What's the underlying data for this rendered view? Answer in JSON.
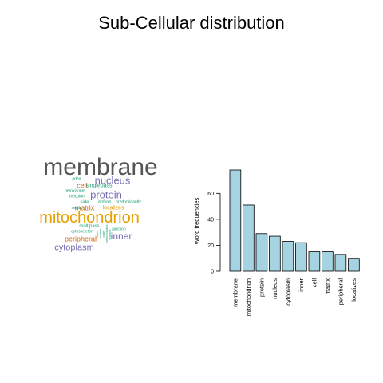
{
  "title": "Sub-Cellular distribution",
  "colors": {
    "bar_fill": "#a6d3e1",
    "bar_stroke": "#000000",
    "axis": "#000000",
    "cloud_gray": "#555555",
    "cloud_orange": "#e69f00",
    "cloud_purple": "#7570b3",
    "cloud_brown": "#d95f02",
    "cloud_green": "#1b9e77"
  },
  "word_cloud": [
    {
      "text": "membrane",
      "color": "cloud_gray"
    },
    {
      "text": "nucleus",
      "color": "cloud_purple"
    },
    {
      "text": "cell",
      "color": "cloud_brown"
    },
    {
      "text": "singlepass",
      "color": "cloud_green"
    },
    {
      "text": "pdea",
      "color": "cloud_green"
    },
    {
      "text": "peroxisome",
      "color": "cloud_green"
    },
    {
      "text": "protein",
      "color": "cloud_purple"
    },
    {
      "text": "reticulum",
      "color": "cloud_green"
    },
    {
      "text": "matrix",
      "color": "cloud_brown"
    },
    {
      "text": "side",
      "color": "cloud_green"
    },
    {
      "text": "isoform",
      "color": "cloud_green"
    },
    {
      "text": "predominantly",
      "color": "cloud_green"
    },
    {
      "text": "cellular",
      "color": "cloud_green"
    },
    {
      "text": "localizes",
      "color": "cloud_orange"
    },
    {
      "text": "mitochondrion",
      "color": "cloud_orange"
    },
    {
      "text": "multipass",
      "color": "cloud_green"
    },
    {
      "text": "cytoskeleton",
      "color": "cloud_green"
    },
    {
      "text": "junction",
      "color": "cloud_green"
    },
    {
      "text": "inner",
      "color": "cloud_purple"
    },
    {
      "text": "peripheral",
      "color": "cloud_brown"
    },
    {
      "text": "cytoplasm",
      "color": "cloud_purple"
    },
    {
      "text": "nuclear",
      "color": "cloud_green"
    },
    {
      "text": "outer",
      "color": "cloud_green"
    },
    {
      "text": "mitochondria",
      "color": "cloud_green"
    },
    {
      "text": "surface",
      "color": "cloud_green"
    },
    {
      "text": "matrix",
      "color": "cloud_green"
    }
  ],
  "chart_data": {
    "type": "bar",
    "categories": [
      "membrane",
      "mitochondrion",
      "protein",
      "nucleus",
      "cytoplasm",
      "inner",
      "cell",
      "matrix",
      "peripheral",
      "localizes"
    ],
    "values": [
      78,
      51,
      29,
      27,
      23,
      22,
      15,
      15,
      13,
      10
    ],
    "ylabel": "Word frequencies",
    "xlabel": "",
    "yticks": [
      0,
      20,
      40,
      60
    ],
    "ylim": [
      0,
      78
    ],
    "x_tick_label_orientation": "vertical",
    "grid": false,
    "legend": "none"
  }
}
